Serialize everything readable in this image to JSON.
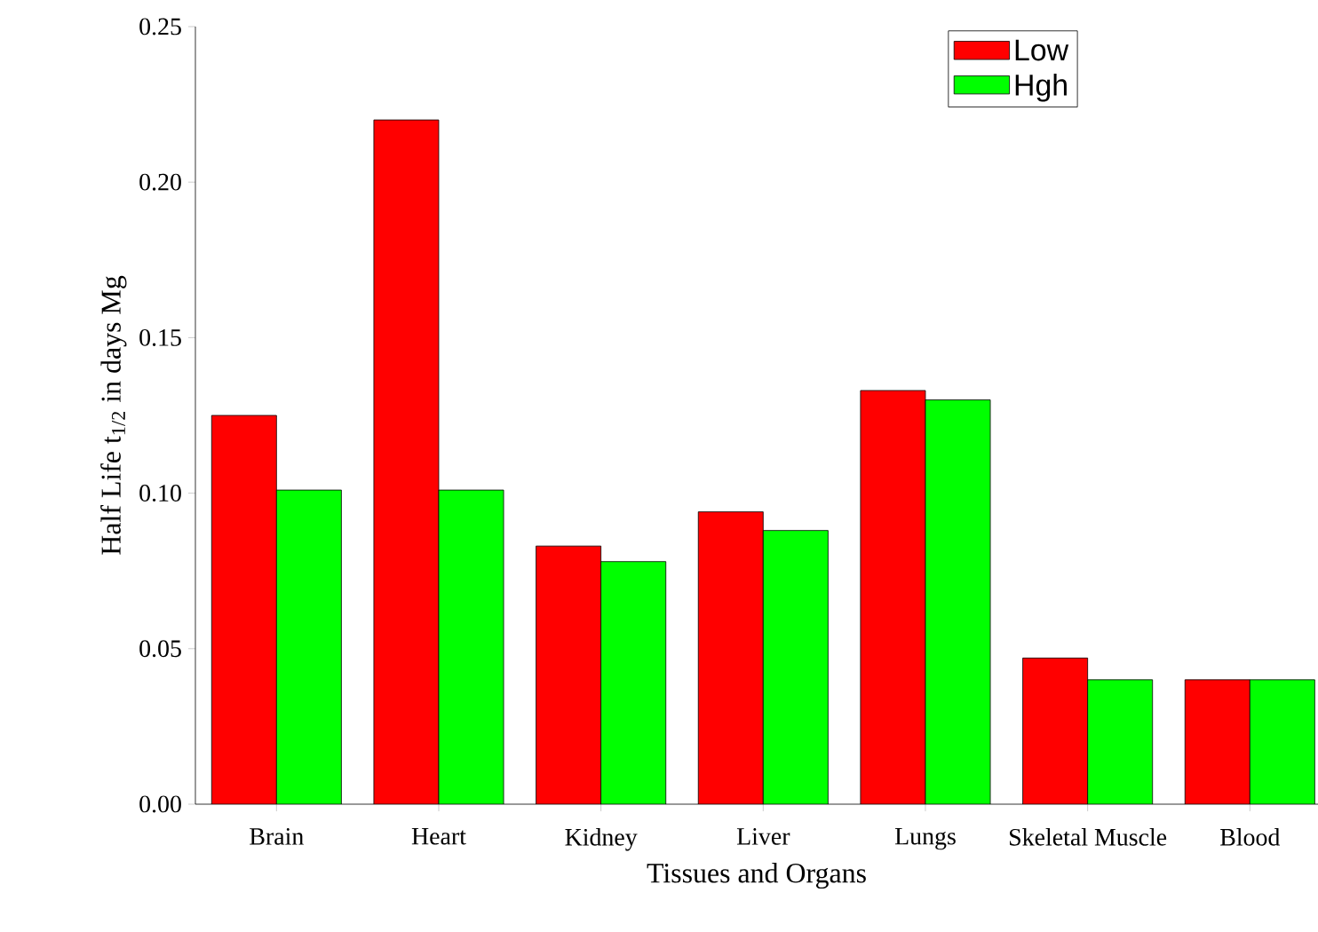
{
  "chart_data": {
    "type": "bar",
    "xlabel": "Tissues and Organs",
    "ylabel": "Half Life t$_{1/2}$ in days Mg",
    "categories": [
      "Brain",
      "Heart",
      "Kidney",
      "Liver",
      "Lungs",
      "Skeletal Muscle",
      "Blood"
    ],
    "series": [
      {
        "name": "Low",
        "color": "#ff0000",
        "values": [
          0.125,
          0.22,
          0.083,
          0.094,
          0.133,
          0.047,
          0.04
        ]
      },
      {
        "name": "Hgh",
        "color": "#00ff00",
        "values": [
          0.101,
          0.101,
          0.078,
          0.088,
          0.13,
          0.04,
          0.04
        ]
      }
    ],
    "ylim": [
      0,
      0.25
    ],
    "yticks": [
      {
        "value": 0,
        "label": "0.00"
      },
      {
        "value": 0.05,
        "label": "0.05"
      },
      {
        "value": 0.1,
        "label": "0.10"
      },
      {
        "value": 0.15,
        "label": "0.15"
      },
      {
        "value": 0.2,
        "label": "0.20"
      },
      {
        "value": 0.25,
        "label": "0.25"
      }
    ],
    "grid": false,
    "legend": "top right"
  }
}
